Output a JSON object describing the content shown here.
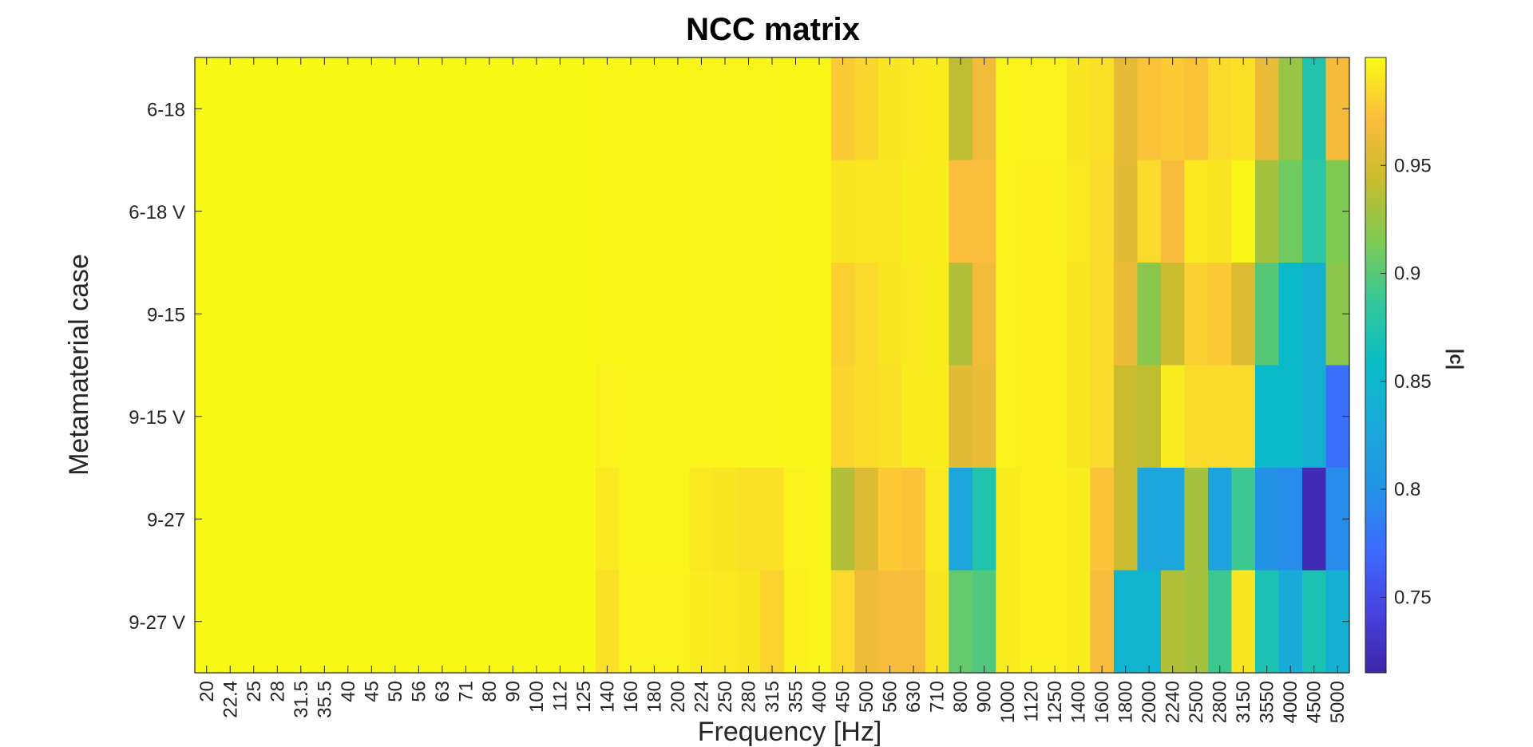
{
  "chart_data": {
    "type": "heatmap",
    "title": "NCC matrix",
    "xlabel": "Frequency [Hz]",
    "ylabel": "Metamaterial case",
    "colorbar_label": "|c|",
    "colormap": "parula",
    "clim": [
      0.715,
      1.0
    ],
    "colorbar_ticks": [
      0.75,
      0.8,
      0.85,
      0.9,
      0.95
    ],
    "grid": false,
    "x_categories": [
      "20",
      "22.4",
      "25",
      "28",
      "31.5",
      "35.5",
      "40",
      "45",
      "50",
      "56",
      "63",
      "71",
      "80",
      "90",
      "100",
      "112",
      "125",
      "140",
      "160",
      "180",
      "200",
      "224",
      "250",
      "280",
      "315",
      "355",
      "400",
      "450",
      "500",
      "560",
      "630",
      "710",
      "800",
      "900",
      "1000",
      "1120",
      "1250",
      "1400",
      "1600",
      "1800",
      "2000",
      "2240",
      "2500",
      "2800",
      "3150",
      "3550",
      "4000",
      "4500",
      "5000"
    ],
    "y_categories": [
      "6-18",
      "6-18 V",
      "9-15",
      "9-15 V",
      "9-27",
      "9-27 V"
    ],
    "values": [
      [
        0.999,
        0.999,
        0.999,
        0.999,
        0.999,
        0.999,
        0.999,
        0.999,
        0.999,
        0.999,
        0.999,
        0.999,
        0.999,
        0.999,
        0.999,
        0.999,
        0.999,
        0.998,
        0.998,
        0.998,
        0.998,
        0.997,
        0.997,
        0.997,
        0.997,
        0.998,
        0.998,
        0.978,
        0.983,
        0.99,
        0.992,
        0.993,
        0.94,
        0.966,
        0.997,
        0.996,
        0.996,
        0.99,
        0.988,
        0.96,
        0.975,
        0.978,
        0.975,
        0.985,
        0.988,
        0.962,
        0.925,
        0.875,
        0.968
      ],
      [
        0.999,
        0.999,
        0.999,
        0.999,
        0.999,
        0.999,
        0.999,
        0.999,
        0.999,
        0.999,
        0.999,
        0.999,
        0.999,
        0.999,
        0.999,
        0.999,
        0.999,
        0.998,
        0.998,
        0.998,
        0.998,
        0.997,
        0.997,
        0.997,
        0.997,
        0.998,
        0.998,
        0.99,
        0.991,
        0.991,
        0.993,
        0.994,
        0.972,
        0.972,
        0.996,
        0.995,
        0.995,
        0.992,
        0.985,
        0.958,
        0.985,
        0.97,
        0.992,
        0.99,
        0.998,
        0.93,
        0.91,
        0.88,
        0.915
      ],
      [
        0.999,
        0.999,
        0.999,
        0.999,
        0.999,
        0.999,
        0.999,
        0.999,
        0.999,
        0.999,
        0.999,
        0.999,
        0.999,
        0.999,
        0.999,
        0.999,
        0.999,
        0.998,
        0.998,
        0.998,
        0.998,
        0.997,
        0.997,
        0.997,
        0.997,
        0.998,
        0.998,
        0.98,
        0.985,
        0.99,
        0.992,
        0.994,
        0.935,
        0.966,
        0.996,
        0.995,
        0.995,
        0.99,
        0.985,
        0.962,
        0.92,
        0.945,
        0.98,
        0.978,
        0.955,
        0.9,
        0.855,
        0.84,
        0.92
      ],
      [
        0.999,
        0.999,
        0.999,
        0.999,
        0.999,
        0.999,
        0.999,
        0.999,
        0.999,
        0.999,
        0.999,
        0.999,
        0.999,
        0.999,
        0.999,
        0.999,
        0.999,
        0.996,
        0.997,
        0.997,
        0.997,
        0.997,
        0.997,
        0.997,
        0.997,
        0.998,
        0.998,
        0.983,
        0.986,
        0.988,
        0.993,
        0.994,
        0.958,
        0.962,
        0.996,
        0.995,
        0.995,
        0.99,
        0.985,
        0.945,
        0.94,
        0.993,
        0.985,
        0.985,
        0.985,
        0.855,
        0.855,
        0.84,
        0.775
      ],
      [
        0.999,
        0.999,
        0.999,
        0.999,
        0.999,
        0.999,
        0.999,
        0.999,
        0.999,
        0.999,
        0.999,
        0.999,
        0.999,
        0.999,
        0.999,
        0.999,
        0.999,
        0.992,
        0.997,
        0.997,
        0.997,
        0.992,
        0.99,
        0.988,
        0.988,
        0.996,
        0.997,
        0.935,
        0.955,
        0.978,
        0.975,
        0.992,
        0.825,
        0.875,
        0.993,
        0.995,
        0.995,
        0.993,
        0.975,
        0.945,
        0.825,
        0.825,
        0.93,
        0.82,
        0.89,
        0.8,
        0.795,
        0.72,
        0.795
      ],
      [
        0.999,
        0.999,
        0.999,
        0.999,
        0.999,
        0.999,
        0.999,
        0.999,
        0.999,
        0.999,
        0.999,
        0.999,
        0.999,
        0.999,
        0.999,
        0.999,
        0.999,
        0.988,
        0.996,
        0.996,
        0.996,
        0.993,
        0.992,
        0.99,
        0.982,
        0.995,
        0.997,
        0.985,
        0.965,
        0.97,
        0.97,
        0.99,
        0.905,
        0.898,
        0.993,
        0.995,
        0.995,
        0.993,
        0.97,
        0.845,
        0.845,
        0.935,
        0.93,
        0.89,
        0.99,
        0.87,
        0.83,
        0.87,
        0.84
      ]
    ]
  }
}
